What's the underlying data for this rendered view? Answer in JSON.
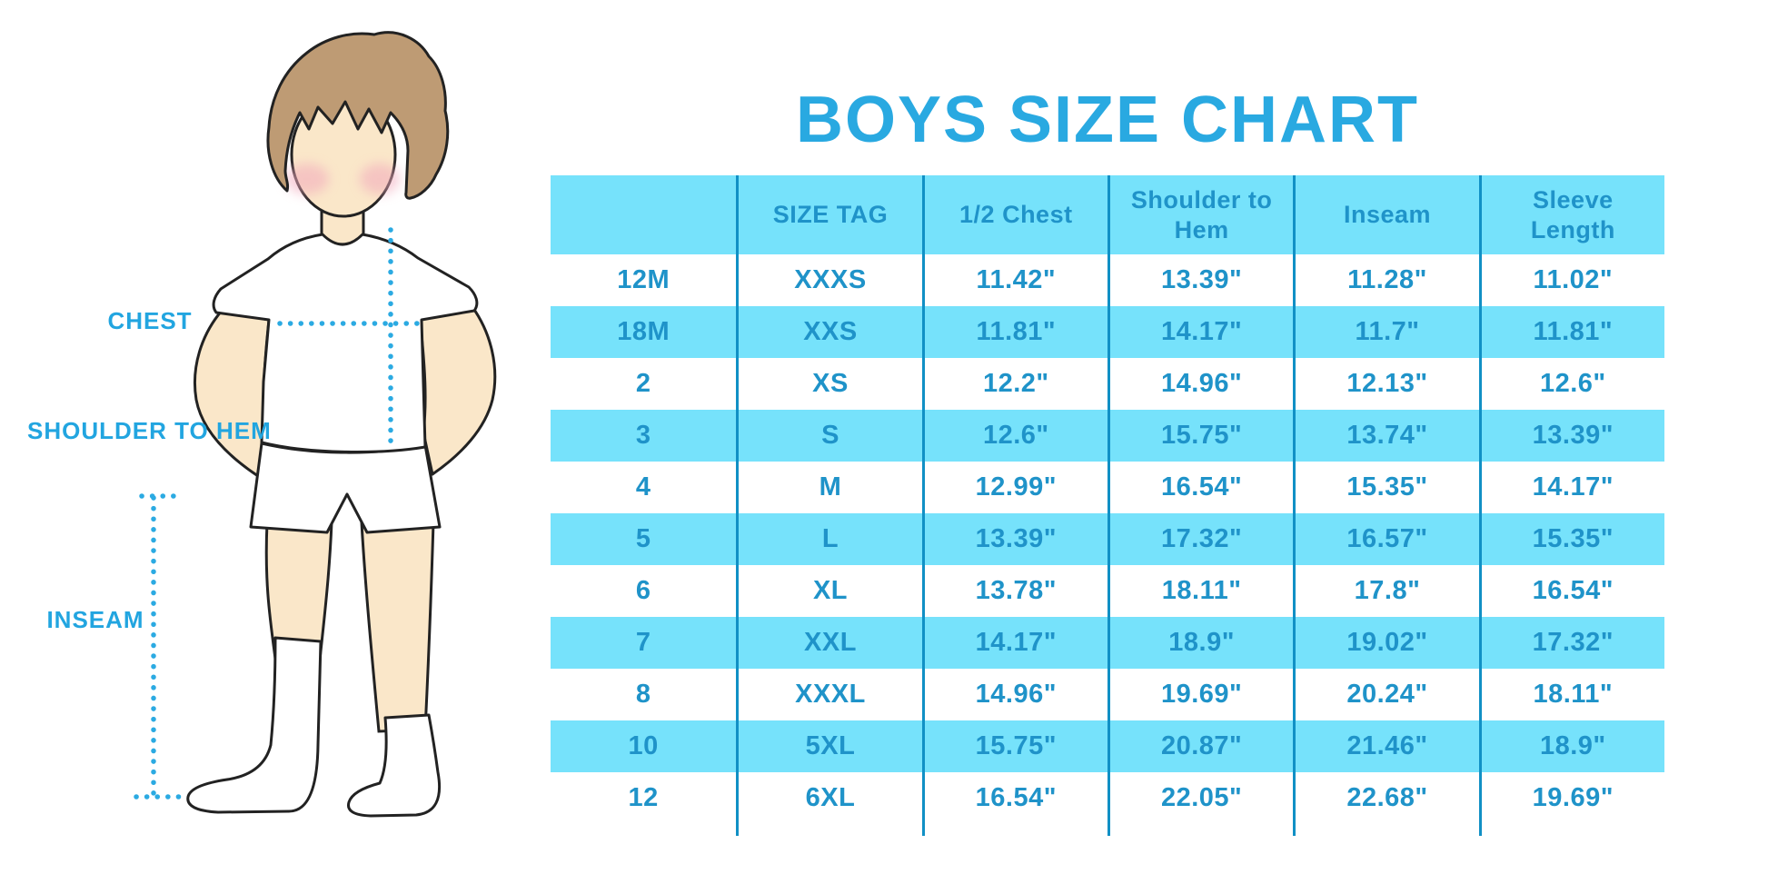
{
  "title": "BOYS SIZE CHART",
  "diagram": {
    "labels": {
      "chest": "CHEST",
      "shoulder_to_hem": "SHOULDER TO HEM",
      "inseam": "INSEAM"
    },
    "figure": "boy-in-white-tee-shorts-and-knee-socks"
  },
  "colors": {
    "title_blue": "#29a9e1",
    "label_blue": "#22a5e0",
    "table_text_blue": "#1f93c9",
    "row_highlight_cyan": "#76e2fb",
    "column_divider_blue": "#1190c5",
    "dotted_line_blue": "#2baae2",
    "skin": "#fae7c9",
    "hair_brown": "#be9b74",
    "blush_pink": "#f2a9bc",
    "outline": "#222222"
  },
  "chart_data": {
    "type": "table",
    "title": "BOYS SIZE CHART",
    "columns": [
      "",
      "SIZE TAG",
      "1/2 Chest",
      "Shoulder to Hem",
      "Inseam",
      "Sleeve Length"
    ],
    "rows": [
      [
        "12M",
        "XXXS",
        "11.42\"",
        "13.39\"",
        "11.28\"",
        "11.02\""
      ],
      [
        "18M",
        "XXS",
        "11.81\"",
        "14.17\"",
        "11.7\"",
        "11.81\""
      ],
      [
        "2",
        "XS",
        "12.2\"",
        "14.96\"",
        "12.13\"",
        "12.6\""
      ],
      [
        "3",
        "S",
        "12.6\"",
        "15.75\"",
        "13.74\"",
        "13.39\""
      ],
      [
        "4",
        "M",
        "12.99\"",
        "16.54\"",
        "15.35\"",
        "14.17\""
      ],
      [
        "5",
        "L",
        "13.39\"",
        "17.32\"",
        "16.57\"",
        "15.35\""
      ],
      [
        "6",
        "XL",
        "13.78\"",
        "18.11\"",
        "17.8\"",
        "16.54\""
      ],
      [
        "7",
        "XXL",
        "14.17\"",
        "18.9\"",
        "19.02\"",
        "17.32\""
      ],
      [
        "8",
        "XXXL",
        "14.96\"",
        "19.69\"",
        "20.24\"",
        "18.11\""
      ],
      [
        "10",
        "5XL",
        "15.75\"",
        "20.87\"",
        "21.46\"",
        "18.9\""
      ],
      [
        "12",
        "6XL",
        "16.54\"",
        "22.05\"",
        "22.68\"",
        "19.69\""
      ]
    ],
    "layout": {
      "striping": "alternate rows highlighted cyan starting with second data row and header",
      "grid": "vertical column dividers only, extending slightly below last row",
      "legend_position": "none"
    }
  }
}
